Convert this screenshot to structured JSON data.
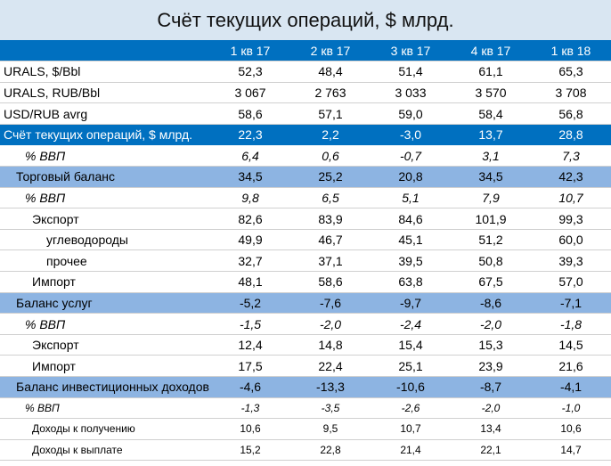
{
  "title": "Счёт текущих операций, $ млрд.",
  "columns": [
    "1 кв 17",
    "2 кв 17",
    "3 кв 17",
    "4 кв 17",
    "1 кв 18"
  ],
  "rows": [
    {
      "label": "URALS, $/Bbl",
      "values": [
        "52,3",
        "48,4",
        "51,4",
        "61,1",
        "65,3"
      ],
      "style": "plain",
      "indent": 0
    },
    {
      "label": "URALS, RUB/Bbl",
      "values": [
        "3 067",
        "2 763",
        "3 033",
        "3 570",
        "3 708"
      ],
      "style": "plain",
      "indent": 0
    },
    {
      "label": "USD/RUB avrg",
      "values": [
        "58,6",
        "57,1",
        "59,0",
        "58,4",
        "56,8"
      ],
      "style": "plain",
      "indent": 0
    },
    {
      "label": "Счёт текущих операций, $ млрд.",
      "values": [
        "22,3",
        "2,2",
        "-3,0",
        "13,7",
        "28,8"
      ],
      "style": "hdr",
      "indent": 0
    },
    {
      "label": "% ВВП",
      "values": [
        "6,4",
        "0,6",
        "-0,7",
        "3,1",
        "7,3"
      ],
      "style": "italic",
      "indent": 2
    },
    {
      "label": "Торговый баланс",
      "values": [
        "34,5",
        "25,2",
        "20,8",
        "34,5",
        "42,3"
      ],
      "style": "light",
      "indent": 1
    },
    {
      "label": "% ВВП",
      "values": [
        "9,8",
        "6,5",
        "5,1",
        "7,9",
        "10,7"
      ],
      "style": "italic",
      "indent": 2
    },
    {
      "label": "Экспорт",
      "values": [
        "82,6",
        "83,9",
        "84,6",
        "101,9",
        "99,3"
      ],
      "style": "plain",
      "indent": 3
    },
    {
      "label": "углеводороды",
      "values": [
        "49,9",
        "46,7",
        "45,1",
        "51,2",
        "60,0"
      ],
      "style": "plain",
      "indent": 4
    },
    {
      "label": "прочее",
      "values": [
        "32,7",
        "37,1",
        "39,5",
        "50,8",
        "39,3"
      ],
      "style": "plain",
      "indent": 4
    },
    {
      "label": "Импорт",
      "values": [
        "48,1",
        "58,6",
        "63,8",
        "67,5",
        "57,0"
      ],
      "style": "plain",
      "indent": 3
    },
    {
      "label": "Баланс услуг",
      "values": [
        "-5,2",
        "-7,6",
        "-9,7",
        "-8,6",
        "-7,1"
      ],
      "style": "light",
      "indent": 1
    },
    {
      "label": "% ВВП",
      "values": [
        "-1,5",
        "-2,0",
        "-2,4",
        "-2,0",
        "-1,8"
      ],
      "style": "italic",
      "indent": 2
    },
    {
      "label": "Экспорт",
      "values": [
        "12,4",
        "14,8",
        "15,4",
        "15,3",
        "14,5"
      ],
      "style": "plain",
      "indent": 3
    },
    {
      "label": "Импорт",
      "values": [
        "17,5",
        "22,4",
        "25,1",
        "23,9",
        "21,6"
      ],
      "style": "plain",
      "indent": 3
    },
    {
      "label": "Баланс инвестиционных доходов",
      "values": [
        "-4,6",
        "-13,3",
        "-10,6",
        "-8,7",
        "-4,1"
      ],
      "style": "light",
      "indent": 1
    },
    {
      "label": "% ВВП",
      "values": [
        "-1,3",
        "-3,5",
        "-2,6",
        "-2,0",
        "-1,0"
      ],
      "style": "italic-small",
      "indent": 2
    },
    {
      "label": "Доходы к получению",
      "values": [
        "10,6",
        "9,5",
        "10,7",
        "13,4",
        "10,6"
      ],
      "style": "small",
      "indent": 3
    },
    {
      "label": "Доходы к выплате",
      "values": [
        "15,2",
        "22,8",
        "21,4",
        "22,1",
        "14,7"
      ],
      "style": "small",
      "indent": 3
    }
  ]
}
